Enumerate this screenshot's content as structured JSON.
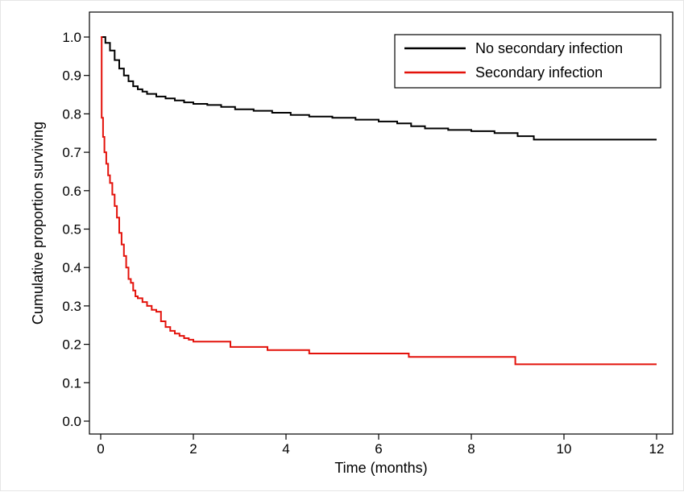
{
  "chart_data": {
    "type": "line",
    "title": "",
    "xlabel": "Time (months)",
    "ylabel": "Cumulative proportion surviving",
    "xlim": [
      0,
      12
    ],
    "ylim": [
      0,
      1
    ],
    "xticks": [
      0,
      2,
      4,
      6,
      8,
      10,
      12
    ],
    "yticks": [
      0.0,
      0.1,
      0.2,
      0.3,
      0.4,
      0.5,
      0.6,
      0.7,
      0.8,
      0.9,
      1.0
    ],
    "ytick_labels": [
      "0.0",
      "0.1",
      "0.2",
      "0.3",
      "0.4",
      "0.5",
      "0.6",
      "0.7",
      "0.8",
      "0.9",
      "1.0"
    ],
    "xtick_labels": [
      "0",
      "2",
      "4",
      "6",
      "8",
      "10",
      "12"
    ],
    "grid": false,
    "legend_position": "top-right",
    "step": true,
    "series": [
      {
        "name": "No secondary infection",
        "color": "#000000",
        "x": [
          0,
          0.1,
          0.2,
          0.3,
          0.4,
          0.5,
          0.6,
          0.7,
          0.8,
          0.9,
          1.0,
          1.2,
          1.4,
          1.6,
          1.8,
          2.0,
          2.3,
          2.6,
          2.9,
          3.3,
          3.7,
          4.1,
          4.5,
          5.0,
          5.5,
          6.0,
          6.4,
          6.7,
          7.0,
          7.5,
          8.0,
          8.5,
          9.0,
          9.35,
          10.0,
          11.0,
          12.0
        ],
        "y": [
          1.0,
          0.985,
          0.965,
          0.94,
          0.918,
          0.9,
          0.885,
          0.872,
          0.864,
          0.858,
          0.852,
          0.845,
          0.84,
          0.835,
          0.83,
          0.826,
          0.823,
          0.818,
          0.812,
          0.808,
          0.803,
          0.797,
          0.793,
          0.79,
          0.785,
          0.78,
          0.775,
          0.768,
          0.762,
          0.758,
          0.755,
          0.75,
          0.742,
          0.733,
          0.733,
          0.733,
          0.733
        ]
      },
      {
        "name": "Secondary infection",
        "color": "#e3120b",
        "x": [
          0,
          0.02,
          0.05,
          0.08,
          0.12,
          0.16,
          0.2,
          0.25,
          0.3,
          0.35,
          0.4,
          0.45,
          0.5,
          0.55,
          0.6,
          0.65,
          0.7,
          0.75,
          0.8,
          0.9,
          1.0,
          1.1,
          1.2,
          1.3,
          1.4,
          1.5,
          1.6,
          1.7,
          1.8,
          1.9,
          2.0,
          2.8,
          3.6,
          4.5,
          5.5,
          6.65,
          8.0,
          8.95,
          10.0,
          12.0
        ],
        "y": [
          1.0,
          0.79,
          0.74,
          0.7,
          0.67,
          0.64,
          0.62,
          0.59,
          0.56,
          0.53,
          0.49,
          0.46,
          0.43,
          0.4,
          0.37,
          0.36,
          0.34,
          0.325,
          0.32,
          0.31,
          0.3,
          0.29,
          0.285,
          0.26,
          0.245,
          0.235,
          0.228,
          0.222,
          0.216,
          0.212,
          0.207,
          0.193,
          0.185,
          0.176,
          0.176,
          0.167,
          0.167,
          0.148,
          0.148,
          0.148
        ]
      }
    ]
  }
}
